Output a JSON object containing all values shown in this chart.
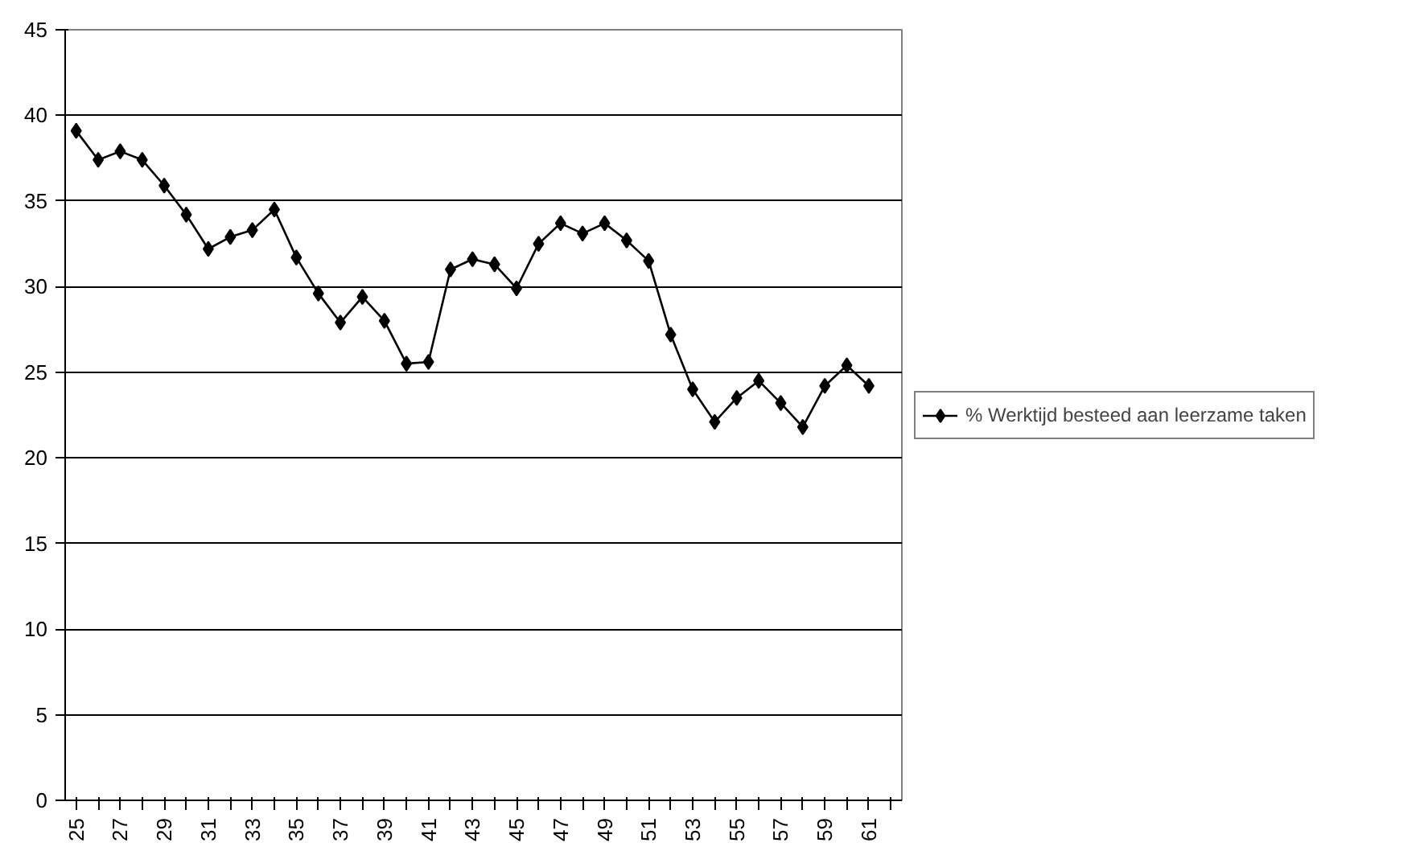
{
  "chart_data": {
    "type": "line",
    "categories": [
      "25",
      null,
      "27",
      null,
      "29",
      null,
      "31",
      null,
      "33",
      null,
      "35",
      null,
      "37",
      null,
      "39",
      null,
      "41",
      null,
      "43",
      null,
      "45",
      null,
      "47",
      null,
      "49",
      null,
      "51",
      null,
      "53",
      null,
      "55",
      null,
      "57",
      null,
      "59",
      null,
      "61",
      null
    ],
    "series": [
      {
        "name": "% Werktijd besteed aan leerzame taken",
        "color": "#000000",
        "values": [
          39.1,
          37.4,
          37.9,
          37.4,
          35.9,
          34.2,
          32.2,
          32.9,
          33.3,
          34.5,
          31.7,
          29.6,
          27.9,
          29.4,
          28.0,
          25.5,
          25.6,
          31.0,
          31.6,
          31.3,
          29.9,
          32.5,
          33.7,
          33.1,
          33.7,
          32.7,
          31.5,
          27.2,
          24.0,
          22.1,
          23.5,
          24.5,
          23.2,
          21.8,
          24.2,
          25.4,
          24.2,
          null
        ]
      }
    ],
    "ylim": [
      0,
      45
    ],
    "yticks": [
      0,
      5,
      10,
      15,
      20,
      25,
      30,
      35,
      40,
      45
    ],
    "grid": "y",
    "legend": "right",
    "marker": "diamond",
    "line_style": "solid"
  }
}
